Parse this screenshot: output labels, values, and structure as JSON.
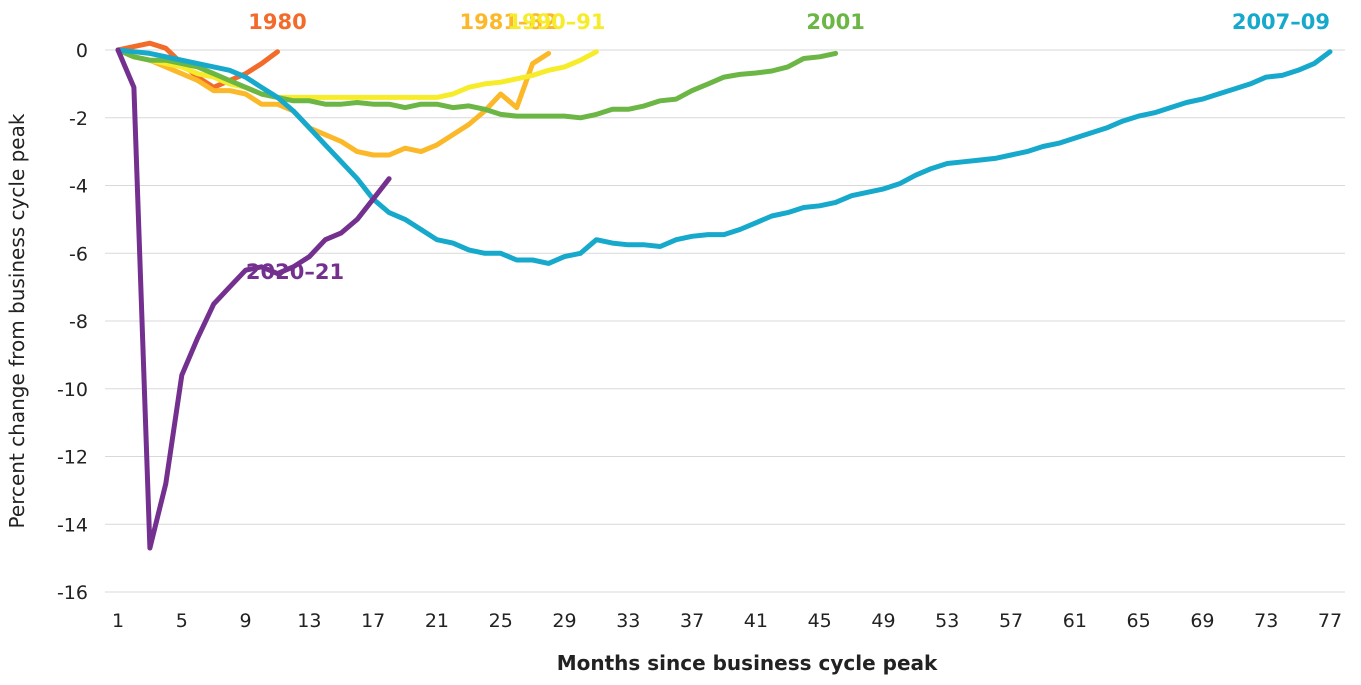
{
  "chart_data": {
    "type": "line",
    "xlabel": "Months since business cycle peak",
    "ylabel": "Percent change from business cycle peak",
    "x": [
      1,
      2,
      3,
      4,
      5,
      6,
      7,
      8,
      9,
      10,
      11,
      12,
      13,
      14,
      15,
      16,
      17,
      18,
      19,
      20,
      21,
      22,
      23,
      24,
      25,
      26,
      27,
      28,
      29,
      30,
      31,
      32,
      33,
      34,
      35,
      36,
      37,
      38,
      39,
      40,
      41,
      42,
      43,
      44,
      45,
      46,
      47,
      48,
      49,
      50,
      51,
      52,
      53,
      54,
      55,
      56,
      57,
      58,
      59,
      60,
      61,
      62,
      63,
      64,
      65,
      66,
      67,
      68,
      69,
      70,
      71,
      72,
      73,
      74,
      75,
      76,
      77
    ],
    "xlim": [
      1,
      77
    ],
    "xticks": [
      1,
      5,
      9,
      13,
      17,
      21,
      25,
      29,
      33,
      37,
      41,
      45,
      49,
      53,
      57,
      61,
      65,
      69,
      73,
      77
    ],
    "ylim": [
      -16,
      0
    ],
    "yticks": [
      -16,
      -14,
      -12,
      -10,
      -8,
      -6,
      -4,
      -2,
      0
    ],
    "grid": true,
    "series": [
      {
        "name": "1980",
        "color": "#f26b2a",
        "values": [
          0,
          0.1,
          0.2,
          0.05,
          -0.4,
          -0.8,
          -1.1,
          -0.9,
          -0.7,
          -0.4,
          -0.05,
          null,
          null,
          null,
          null,
          null,
          null,
          null,
          null,
          null,
          null,
          null,
          null,
          null,
          null,
          null,
          null,
          null,
          null,
          null,
          null,
          null,
          null,
          null,
          null,
          null,
          null,
          null,
          null,
          null,
          null,
          null,
          null,
          null,
          null,
          null,
          null,
          null,
          null,
          null,
          null,
          null,
          null,
          null,
          null,
          null,
          null,
          null,
          null,
          null,
          null,
          null,
          null,
          null,
          null,
          null,
          null,
          null,
          null,
          null,
          null,
          null,
          null,
          null,
          null,
          null,
          null
        ]
      },
      {
        "name": "1981–82",
        "color": "#fbb829",
        "values": [
          0,
          -0.2,
          -0.3,
          -0.5,
          -0.7,
          -0.9,
          -1.2,
          -1.2,
          -1.3,
          -1.6,
          -1.6,
          -1.8,
          -2.3,
          -2.5,
          -2.7,
          -3.0,
          -3.1,
          -3.1,
          -2.9,
          -3.0,
          -2.8,
          -2.5,
          -2.2,
          -1.8,
          -1.3,
          -1.7,
          -0.4,
          -0.1,
          null,
          null,
          null,
          null,
          null,
          null,
          null,
          null,
          null,
          null,
          null,
          null,
          null,
          null,
          null,
          null,
          null,
          null,
          null,
          null,
          null,
          null,
          null,
          null,
          null,
          null,
          null,
          null,
          null,
          null,
          null,
          null,
          null,
          null,
          null,
          null,
          null,
          null,
          null,
          null,
          null,
          null,
          null,
          null,
          null,
          null,
          null,
          null,
          null
        ]
      },
      {
        "name": "1990–91",
        "color": "#f7ec2a",
        "values": [
          0,
          -0.2,
          -0.3,
          -0.4,
          -0.5,
          -0.7,
          -0.8,
          -1.0,
          -1.1,
          -1.3,
          -1.4,
          -1.4,
          -1.4,
          -1.4,
          -1.4,
          -1.4,
          -1.4,
          -1.4,
          -1.4,
          -1.4,
          -1.4,
          -1.3,
          -1.1,
          -1.0,
          -0.95,
          -0.85,
          -0.75,
          -0.6,
          -0.5,
          -0.3,
          -0.05,
          null,
          null,
          null,
          null,
          null,
          null,
          null,
          null,
          null,
          null,
          null,
          null,
          null,
          null,
          null,
          null,
          null,
          null,
          null,
          null,
          null,
          null,
          null,
          null,
          null,
          null,
          null,
          null,
          null,
          null,
          null,
          null,
          null,
          null,
          null,
          null,
          null,
          null,
          null,
          null,
          null,
          null,
          null,
          null,
          null,
          null
        ]
      },
      {
        "name": "2001",
        "color": "#6cb645",
        "values": [
          0,
          -0.2,
          -0.3,
          -0.3,
          -0.4,
          -0.5,
          -0.7,
          -0.9,
          -1.1,
          -1.3,
          -1.4,
          -1.5,
          -1.5,
          -1.6,
          -1.6,
          -1.55,
          -1.6,
          -1.6,
          -1.7,
          -1.6,
          -1.6,
          -1.7,
          -1.65,
          -1.75,
          -1.9,
          -1.95,
          -1.95,
          -1.95,
          -1.95,
          -2.0,
          -1.9,
          -1.75,
          -1.75,
          -1.65,
          -1.5,
          -1.45,
          -1.2,
          -1.0,
          -0.8,
          -0.72,
          -0.68,
          -0.62,
          -0.5,
          -0.25,
          -0.2,
          -0.1,
          null,
          null,
          null,
          null,
          null,
          null,
          null,
          null,
          null,
          null,
          null,
          null,
          null,
          null,
          null,
          null,
          null,
          null,
          null,
          null,
          null,
          null,
          null,
          null,
          null,
          null,
          null,
          null,
          null,
          null,
          null
        ]
      },
      {
        "name": "2007–09",
        "color": "#17a9cc",
        "values": [
          0,
          -0.05,
          -0.1,
          -0.2,
          -0.3,
          -0.4,
          -0.5,
          -0.6,
          -0.8,
          -1.1,
          -1.4,
          -1.8,
          -2.3,
          -2.8,
          -3.3,
          -3.8,
          -4.4,
          -4.8,
          -5.0,
          -5.3,
          -5.6,
          -5.7,
          -5.9,
          -6.0,
          -6.0,
          -6.2,
          -6.2,
          -6.3,
          -6.1,
          -6.0,
          -5.6,
          -5.7,
          -5.75,
          -5.75,
          -5.8,
          -5.6,
          -5.5,
          -5.45,
          -5.45,
          -5.3,
          -5.1,
          -4.9,
          -4.8,
          -4.65,
          -4.6,
          -4.5,
          -4.3,
          -4.2,
          -4.1,
          -3.95,
          -3.7,
          -3.5,
          -3.35,
          -3.3,
          -3.25,
          -3.2,
          -3.1,
          -3.0,
          -2.85,
          -2.75,
          -2.6,
          -2.45,
          -2.3,
          -2.1,
          -1.95,
          -1.85,
          -1.7,
          -1.55,
          -1.45,
          -1.3,
          -1.15,
          -1.0,
          -0.8,
          -0.75,
          -0.6,
          -0.4,
          -0.05
        ]
      },
      {
        "name": "2020–21",
        "color": "#74308f",
        "values": [
          0,
          -1.1,
          -14.7,
          -12.8,
          -9.6,
          -8.5,
          -7.5,
          -7.0,
          -6.5,
          -6.4,
          -6.6,
          -6.4,
          -6.1,
          -5.6,
          -5.4,
          -5.0,
          -4.4,
          -3.8,
          null,
          null,
          null,
          null,
          null,
          null,
          null,
          null,
          null,
          null,
          null,
          null,
          null,
          null,
          null,
          null,
          null,
          null,
          null,
          null,
          null,
          null,
          null,
          null,
          null,
          null,
          null,
          null,
          null,
          null,
          null,
          null,
          null,
          null,
          null,
          null,
          null,
          null,
          null,
          null,
          null,
          null,
          null,
          null,
          null,
          null,
          null,
          null,
          null,
          null,
          null,
          null,
          null,
          null,
          null,
          null,
          null,
          null,
          null
        ]
      }
    ]
  }
}
